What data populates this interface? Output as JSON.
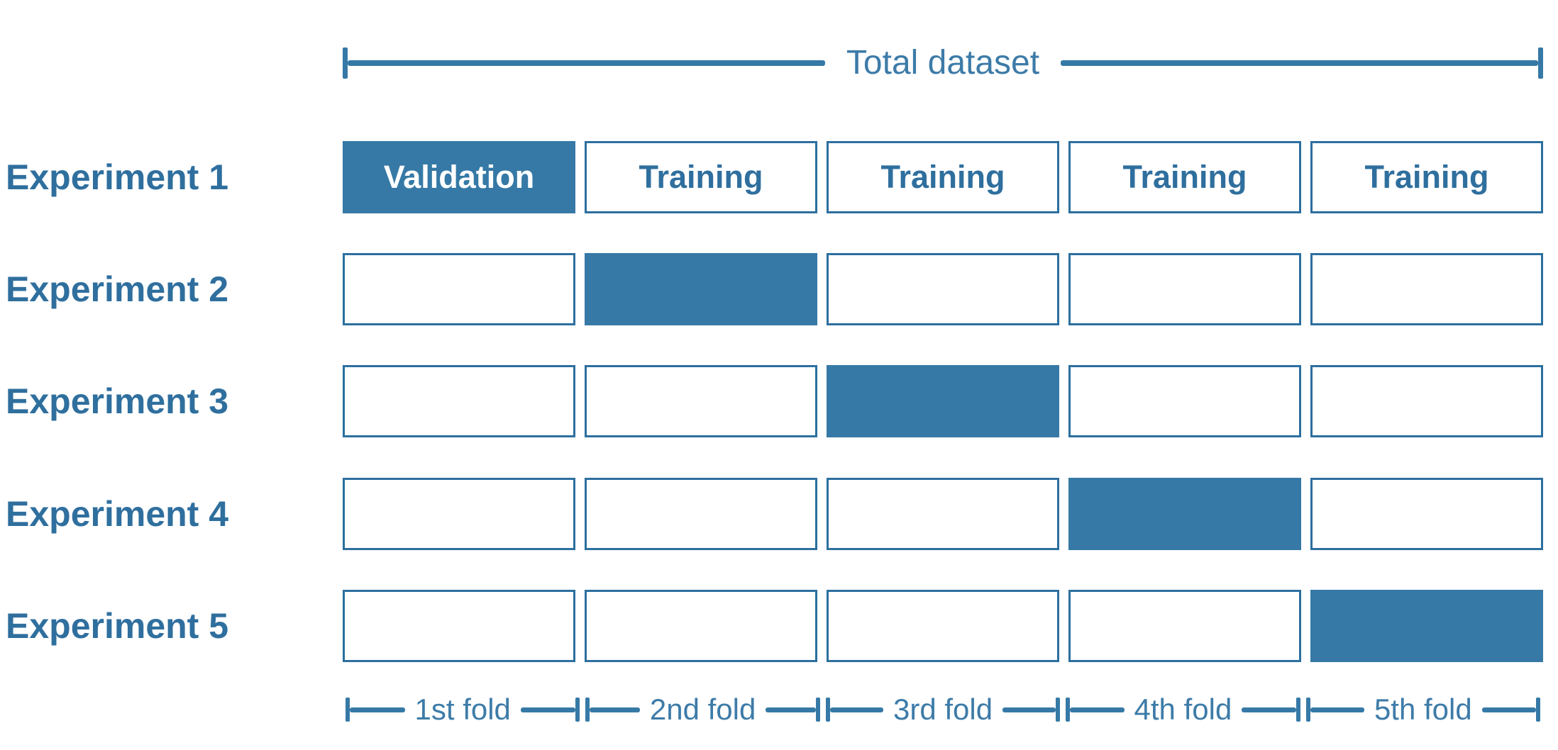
{
  "colors": {
    "fill_blue": "#3679a6",
    "border_blue": "#2c6f9f",
    "label_text_blue": "#2f6f9e",
    "cell_text_white": "#ffffff"
  },
  "top_bracket": {
    "label": "Total dataset"
  },
  "experiments": [
    {
      "label": "Experiment 1",
      "validation_fold": 1,
      "cells": [
        "Validation",
        "Training",
        "Training",
        "Training",
        "Training"
      ]
    },
    {
      "label": "Experiment 2",
      "validation_fold": 2,
      "cells": [
        "",
        "",
        "",
        "",
        ""
      ]
    },
    {
      "label": "Experiment 3",
      "validation_fold": 3,
      "cells": [
        "",
        "",
        "",
        "",
        ""
      ]
    },
    {
      "label": "Experiment 4",
      "validation_fold": 4,
      "cells": [
        "",
        "",
        "",
        "",
        ""
      ]
    },
    {
      "label": "Experiment 5",
      "validation_fold": 5,
      "cells": [
        "",
        "",
        "",
        "",
        ""
      ]
    }
  ],
  "fold_axis": [
    {
      "label": "1st fold"
    },
    {
      "label": "2nd fold"
    },
    {
      "label": "3rd fold"
    },
    {
      "label": "4th fold"
    },
    {
      "label": "5th fold"
    }
  ]
}
